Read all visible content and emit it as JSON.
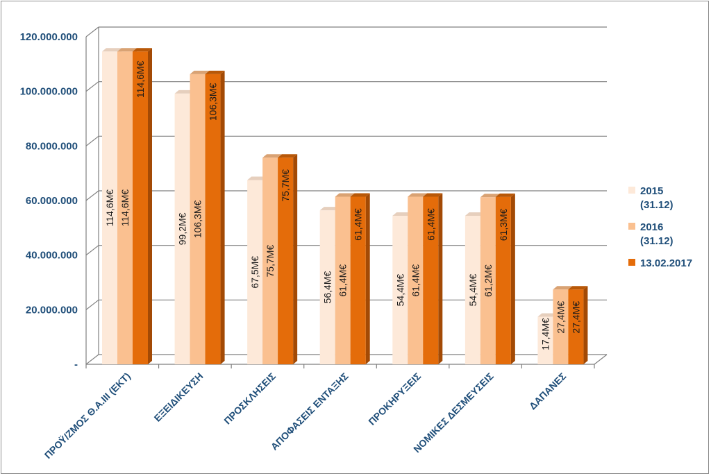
{
  "chart_data": {
    "type": "bar",
    "categories": [
      "ΠΡΟΫ/ΖΜΟΣ Θ.Α.ΙΙΙ (ΕΚΤ)",
      "ΕΞΕΙΔΙΚΕΥΣΗ",
      "ΠΡΟΣΚΛΗΣΕΙΣ",
      "ΑΠΟΦΑΣΕΙΣ ΕΝΤΑΞΗΣ",
      "ΠΡΟΚΗΡΥΞΕΙΣ",
      "ΝΟΜΙΚΕΣ ΔΕΣΜΕΥΣΕΙΣ",
      "ΔΑΠΑΝΕΣ"
    ],
    "series": [
      {
        "name": "2015 (31.12)",
        "legend_lines": [
          "2015",
          "(31.12)"
        ],
        "color": "#fde9d9",
        "values": [
          114600000,
          99200000,
          67500000,
          56400000,
          54400000,
          54400000,
          17400000
        ],
        "labels": [
          "114,6Μ€",
          "99,2Μ€",
          "67,5Μ€",
          "56,4Μ€",
          "54,4Μ€",
          "54,4Μ€",
          "17,4Μ€"
        ]
      },
      {
        "name": "2016 (31.12)",
        "legend_lines": [
          "2016",
          "(31.12)"
        ],
        "color": "#fac090",
        "values": [
          114600000,
          106300000,
          75700000,
          61400000,
          61400000,
          61200000,
          27400000
        ],
        "labels": [
          "114,6Μ€",
          "106,3Μ€",
          "75,7Μ€",
          "61,4Μ€",
          "61,4Μ€",
          "61,2Μ€",
          "27,4Μ€"
        ]
      },
      {
        "name": "13.02.2017",
        "legend_lines": [
          "13.02.2017"
        ],
        "color": "#e46c0a",
        "values": [
          114600000,
          106300000,
          75700000,
          61400000,
          61400000,
          61300000,
          27400000
        ],
        "labels": [
          "114,6Μ€",
          "106,3Μ€",
          "75,7Μ€",
          "61,4Μ€",
          "61,4Μ€",
          "61,3Μ€",
          "27,4Μ€"
        ]
      }
    ],
    "yticks": [
      "-",
      "20.000.000",
      "40.000.000",
      "60.000.000",
      "80.000.000",
      "100.000.000",
      "120.000.000"
    ],
    "ylim": [
      0,
      120000000
    ],
    "grid": true,
    "legend_position": "right",
    "title": "",
    "xlabel": "",
    "ylabel": ""
  }
}
